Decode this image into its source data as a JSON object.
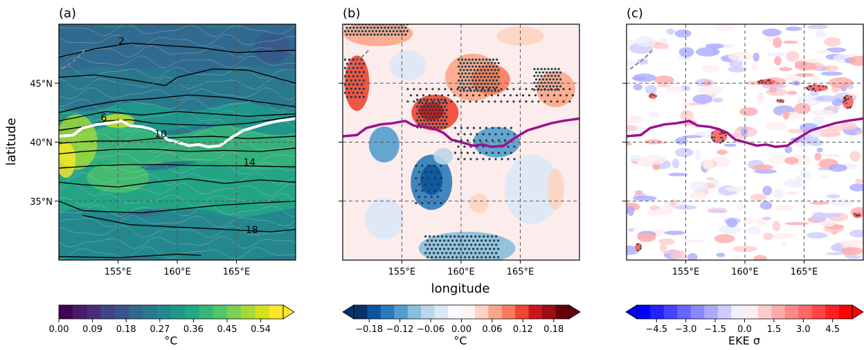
{
  "chart_data": [
    {
      "type": "heatmap",
      "panel_label": "(a)",
      "xlim": [
        150,
        170
      ],
      "ylim": [
        30,
        50
      ],
      "x_ticks": [
        155,
        160,
        165
      ],
      "x_tick_labels": [
        "155°E",
        "160°E",
        "165°E"
      ],
      "y_ticks": [
        35,
        40,
        45
      ],
      "y_tick_labels": [
        "35°N",
        "40°N",
        "45°N"
      ],
      "ylabel": "latitude",
      "grid": true,
      "contour_labels": [
        {
          "text": "2",
          "lon": 155.3,
          "lat": 48.3
        },
        {
          "text": "6",
          "lon": 153.8,
          "lat": 41.8
        },
        {
          "text": "10",
          "lon": 158.6,
          "lat": 40.4
        },
        {
          "text": "14",
          "lon": 166.1,
          "lat": 38.0
        },
        {
          "text": "18",
          "lon": 166.3,
          "lat": 32.3
        }
      ],
      "colorbar": {
        "label": "°C",
        "min": 0.0,
        "max": 0.6,
        "tick_values": [
          0.0,
          0.09,
          0.18,
          0.27,
          0.36,
          0.45,
          0.54
        ],
        "tick_labels": [
          "0.00",
          "0.09",
          "0.18",
          "0.27",
          "0.36",
          "0.45",
          "0.54"
        ],
        "extend": "max",
        "colors": [
          "#440154",
          "#481a6c",
          "#472f7d",
          "#414487",
          "#39568c",
          "#31688e",
          "#2a788e",
          "#23888e",
          "#1f988b",
          "#22a884",
          "#35b779",
          "#54c568",
          "#7ad151",
          "#a5db36",
          "#d2e21b",
          "#fde725"
        ]
      }
    },
    {
      "type": "heatmap",
      "panel_label": "(b)",
      "xlim": [
        150,
        170
      ],
      "ylim": [
        30,
        50
      ],
      "x_ticks": [
        155,
        160,
        165
      ],
      "x_tick_labels": [
        "155°E",
        "160°E",
        "165°E"
      ],
      "y_ticks": [
        35,
        40,
        45
      ],
      "xlabel": "longitude",
      "grid": true,
      "colorbar": {
        "label": "°C",
        "min": -0.21,
        "max": 0.21,
        "tick_values": [
          -0.18,
          -0.12,
          -0.06,
          0.0,
          0.06,
          0.12,
          0.18
        ],
        "tick_labels": [
          "−0.18",
          "−0.12",
          "−0.06",
          "0.00",
          "0.06",
          "0.12",
          "0.18"
        ],
        "extend": "both",
        "colors": [
          "#08306b",
          "#0b559f",
          "#2b7bba",
          "#539ecd",
          "#89bedc",
          "#bad6eb",
          "#dbe9f6",
          "#f7fbff",
          "#fff5f0",
          "#fdd4c2",
          "#fca689",
          "#fb7b5b",
          "#ef4533",
          "#c9181d",
          "#9c0d14",
          "#67000d"
        ]
      }
    },
    {
      "type": "heatmap",
      "panel_label": "(c)",
      "xlim": [
        150,
        170
      ],
      "ylim": [
        30,
        50
      ],
      "x_ticks": [
        155,
        160,
        165
      ],
      "x_tick_labels": [
        "155°E",
        "160°E",
        "165°E"
      ],
      "y_ticks": [
        35,
        40,
        45
      ],
      "grid": true,
      "colorbar": {
        "label": "EKE  σ",
        "min": -5.5,
        "max": 5.5,
        "tick_values": [
          -4.5,
          -3.0,
          -1.5,
          0.0,
          1.5,
          3.0,
          4.5
        ],
        "tick_labels": [
          "−4.5",
          "−3.0",
          "−1.5",
          "0.0",
          "1.5",
          "3.0",
          "4.5"
        ],
        "extend": "both",
        "colors": [
          "#0000ff",
          "#2222ff",
          "#4444ff",
          "#6666ff",
          "#8888ff",
          "#aaaaff",
          "#ccccff",
          "#eeeeff",
          "#ffeeee",
          "#ffcccc",
          "#ffaaaa",
          "#ff8888",
          "#ff6666",
          "#ff4444",
          "#ff2222",
          "#ff0000"
        ]
      }
    }
  ],
  "front_path": {
    "color": "#9b0f8f",
    "points": [
      [
        150,
        40.5
      ],
      [
        151.2,
        40.6
      ],
      [
        152,
        41.2
      ],
      [
        153.2,
        41.5
      ],
      [
        154.2,
        41.6
      ],
      [
        155.3,
        41.8
      ],
      [
        156,
        41.4
      ],
      [
        157,
        41.3
      ],
      [
        157.8,
        41.1
      ],
      [
        158.5,
        40.8
      ],
      [
        159.2,
        40.2
      ],
      [
        160,
        40.0
      ],
      [
        161,
        39.7
      ],
      [
        161.8,
        39.8
      ],
      [
        162.6,
        39.6
      ],
      [
        163.6,
        39.7
      ],
      [
        164.6,
        40.4
      ],
      [
        165.6,
        41.0
      ],
      [
        166.6,
        41.3
      ],
      [
        167.6,
        41.6
      ],
      [
        168.6,
        41.8
      ],
      [
        170,
        42.0
      ]
    ]
  }
}
